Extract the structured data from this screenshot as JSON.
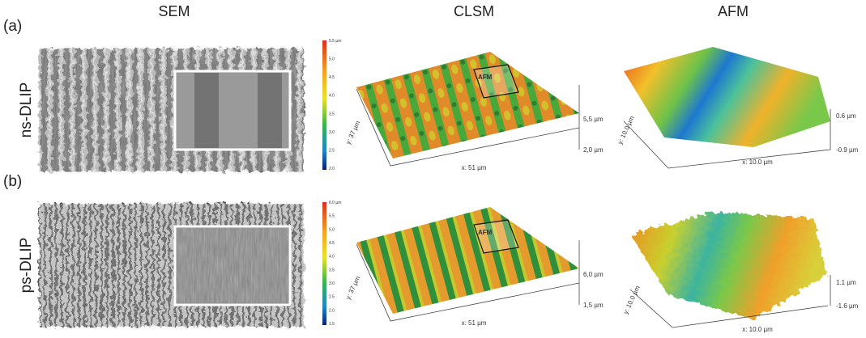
{
  "columns": [
    "SEM",
    "CLSM",
    "AFM"
  ],
  "rows": [
    {
      "panel": "(a)",
      "label": "ns-DLIP",
      "colorbar": [
        "5.5 µm",
        "5.0",
        "4.5",
        "4.0",
        "3.5",
        "3.0",
        "2.5",
        "2.0"
      ],
      "clsm": {
        "box": "AFM",
        "z_top": "5,5 µm",
        "z_bottom": "2,0 µm",
        "y": "y: 37 µm",
        "x": "x: 51 µm"
      },
      "afm": {
        "z_top": "0.6 µm",
        "z_bottom": "-0.9 µm",
        "y": "y: 10.0 µm",
        "x": "x: 10.0 µm"
      }
    },
    {
      "panel": "(b)",
      "label": "ps-DLIP",
      "colorbar": [
        "6.0 µm",
        "5.5",
        "5.0",
        "4.5",
        "4.0",
        "3.5",
        "3.0",
        "2.5",
        "2.0",
        "1.5"
      ],
      "clsm": {
        "box": "AFM",
        "z_top": "6,0 µm",
        "z_bottom": "1,5 µm",
        "y": "y: 37 µm",
        "x": "x: 51 µm"
      },
      "afm": {
        "z_top": "1.1 µm",
        "z_bottom": "-1.6 µm",
        "y": "y: 10.0 µm",
        "x": "x: 10.0 µm"
      }
    }
  ]
}
